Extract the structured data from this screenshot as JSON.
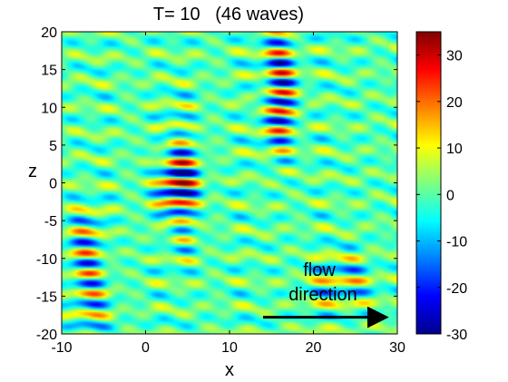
{
  "chart_data": {
    "type": "heatmap",
    "title": "T= 10   (46 waves)",
    "xlabel": "x",
    "ylabel": "z",
    "xlim": [
      -10,
      30
    ],
    "ylim": [
      -20,
      20
    ],
    "x_ticks": [
      -10,
      0,
      10,
      20,
      30
    ],
    "y_ticks": [
      -20,
      -15,
      -10,
      -5,
      0,
      5,
      10,
      15,
      20
    ],
    "colorbar": {
      "colormap": "jet",
      "range": [
        -30,
        35
      ],
      "ticks": [
        -30,
        -20,
        -10,
        0,
        10,
        20,
        30
      ]
    },
    "annotation": {
      "lines": [
        "flow",
        "direction"
      ],
      "arrow_from": [
        14,
        -17.8
      ],
      "arrow_to": [
        29,
        -17.8
      ]
    },
    "features": [
      {
        "x": 4,
        "z": 0,
        "peak": 32,
        "period_z": 2.6,
        "sigma_x": 1.8,
        "sigma_z": 5.5
      },
      {
        "x": 16,
        "z": 12,
        "peak": 30,
        "period_z": 2.6,
        "sigma_x": 1.6,
        "sigma_z": 6
      },
      {
        "x": -7,
        "z": -12,
        "peak": 26,
        "period_z": 2.8,
        "sigma_x": 2,
        "sigma_z": 5
      },
      {
        "x": 24,
        "z": -13,
        "peak": 15,
        "period_z": 3,
        "sigma_x": 3,
        "sigma_z": 3
      }
    ]
  }
}
